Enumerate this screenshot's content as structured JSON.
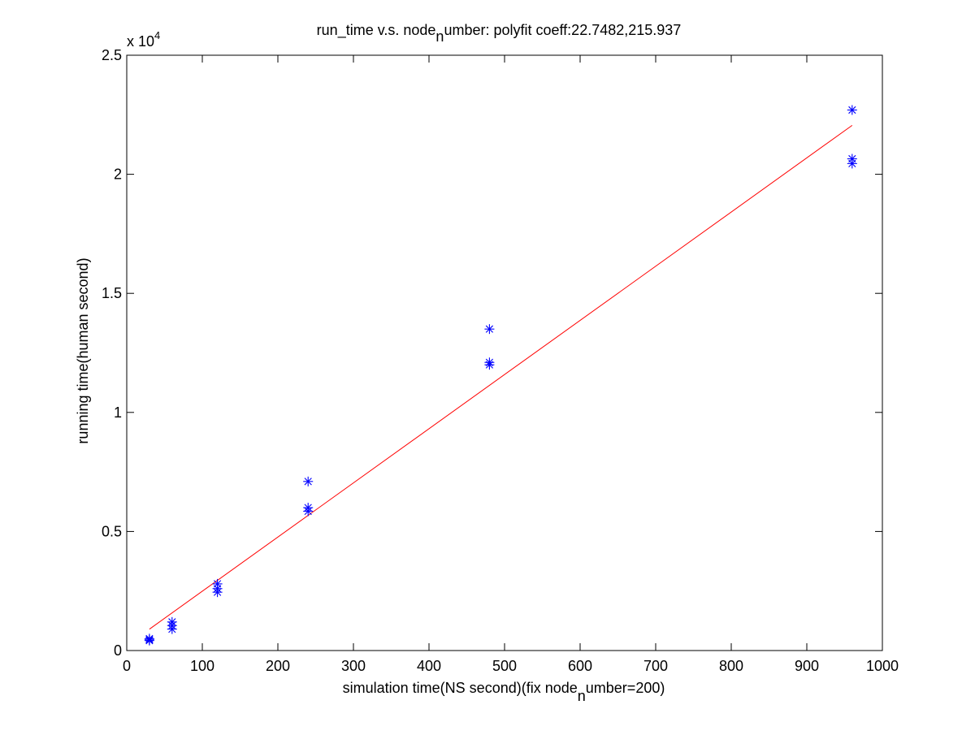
{
  "chart_data": {
    "type": "scatter",
    "title": {
      "prefix": "run_time v.s. node",
      "subscript": "n",
      "suffix": "umber: polyfit coeff:22.7482,215.937"
    },
    "xlabel": {
      "prefix": "simulation time(NS second)(fix node",
      "subscript": "n",
      "suffix": "umber=200)"
    },
    "ylabel": "running time(human second)",
    "y_exponent_label": {
      "base": "x 10",
      "power": "4"
    },
    "xlim": [
      0,
      1000
    ],
    "ylim": [
      0,
      25000
    ],
    "x_ticks": [
      0,
      100,
      200,
      300,
      400,
      500,
      600,
      700,
      800,
      900,
      1000
    ],
    "x_tick_labels": [
      "0",
      "100",
      "200",
      "300",
      "400",
      "500",
      "600",
      "700",
      "800",
      "900",
      "1000"
    ],
    "y_ticks": [
      0,
      5000,
      10000,
      15000,
      20000,
      25000
    ],
    "y_tick_labels": [
      "0",
      "0.5",
      "1",
      "1.5",
      "2",
      "2.5"
    ],
    "grid": false,
    "series": [
      {
        "marker": "asterisk",
        "color": "#0000ff",
        "points": [
          [
            30,
            450
          ],
          [
            30,
            500
          ],
          [
            30,
            420
          ],
          [
            60,
            900
          ],
          [
            60,
            1050
          ],
          [
            60,
            1200
          ],
          [
            120,
            2450
          ],
          [
            120,
            2600
          ],
          [
            120,
            2800
          ],
          [
            240,
            5850
          ],
          [
            240,
            6000
          ],
          [
            240,
            7100
          ],
          [
            480,
            12000
          ],
          [
            480,
            12100
          ],
          [
            480,
            13500
          ],
          [
            960,
            20450
          ],
          [
            960,
            20650
          ],
          [
            960,
            22700
          ]
        ]
      },
      {
        "line": true,
        "color": "#ff0000",
        "fit": {
          "slope": 22.7482,
          "intercept": 215.937
        },
        "x_range": [
          30,
          960
        ]
      }
    ]
  }
}
